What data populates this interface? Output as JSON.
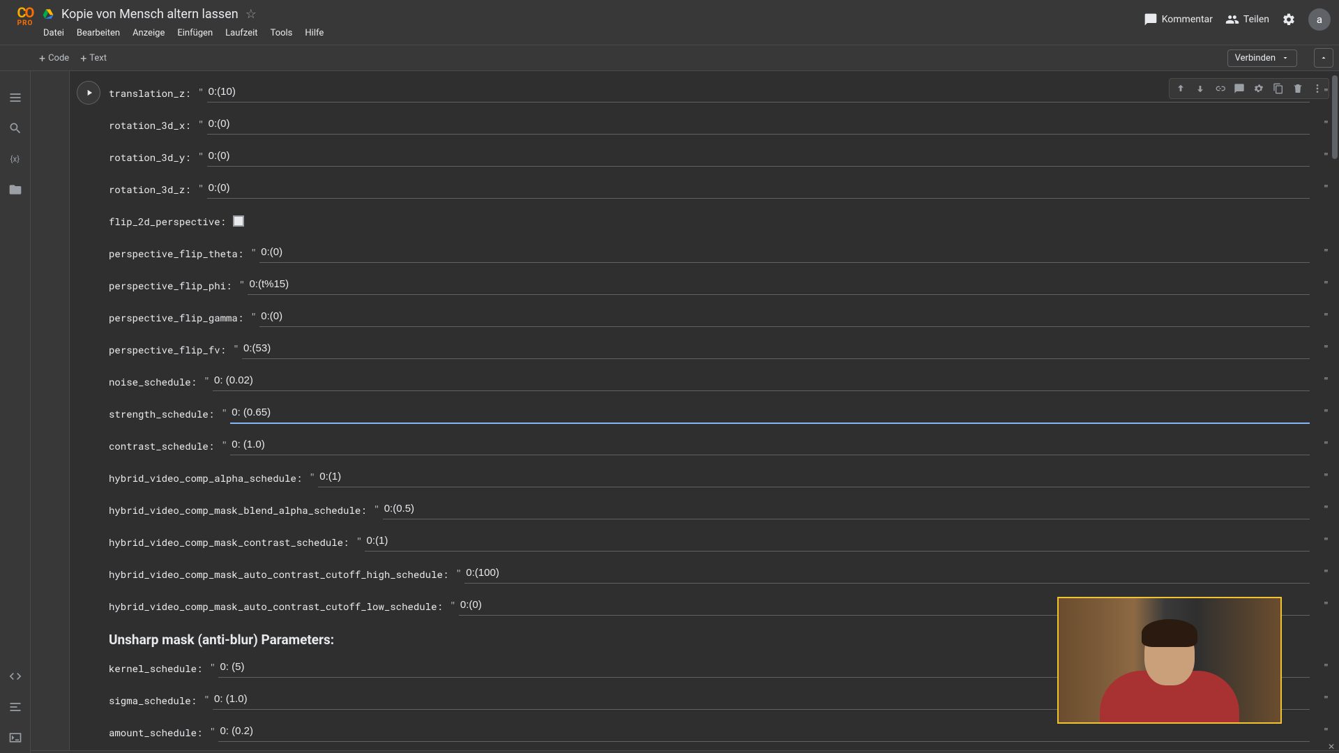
{
  "header": {
    "pro_label": "PRO",
    "notebook_title": "Kopie von Mensch altern lassen",
    "menu": [
      "Datei",
      "Bearbeiten",
      "Anzeige",
      "Einfügen",
      "Laufzeit",
      "Tools",
      "Hilfe"
    ],
    "comment_label": "Kommentar",
    "share_label": "Teilen",
    "avatar_initial": "a"
  },
  "toolbar": {
    "code_label": "Code",
    "text_label": "Text",
    "connect_label": "Verbinden"
  },
  "section_heading": "Unsharp mask (anti-blur) Parameters:",
  "fields": [
    {
      "key": "translation_z",
      "label": "translation_z:",
      "value": "0:(10)"
    },
    {
      "key": "rotation_3d_x",
      "label": "rotation_3d_x:",
      "value": "0:(0)"
    },
    {
      "key": "rotation_3d_y",
      "label": "rotation_3d_y:",
      "value": "0:(0)"
    },
    {
      "key": "rotation_3d_z",
      "label": "rotation_3d_z:",
      "value": "0:(0)"
    },
    {
      "key": "flip_2d_perspective",
      "label": "flip_2d_perspective:",
      "type": "checkbox"
    },
    {
      "key": "perspective_flip_theta",
      "label": "perspective_flip_theta:",
      "value": "0:(0)"
    },
    {
      "key": "perspective_flip_phi",
      "label": "perspective_flip_phi:",
      "value": "0:(t%15)"
    },
    {
      "key": "perspective_flip_gamma",
      "label": "perspective_flip_gamma:",
      "value": "0:(0)"
    },
    {
      "key": "perspective_flip_fv",
      "label": "perspective_flip_fv:",
      "value": "0:(53)"
    },
    {
      "key": "noise_schedule",
      "label": "noise_schedule:",
      "value": "0: (0.02)"
    },
    {
      "key": "strength_schedule",
      "label": "strength_schedule:",
      "value": "0: (0.65)",
      "focused": true
    },
    {
      "key": "contrast_schedule",
      "label": "contrast_schedule:",
      "value": "0: (1.0)"
    },
    {
      "key": "hybrid_video_comp_alpha_schedule",
      "label": "hybrid_video_comp_alpha_schedule:",
      "value": "0:(1)"
    },
    {
      "key": "hybrid_video_comp_mask_blend_alpha_schedule",
      "label": "hybrid_video_comp_mask_blend_alpha_schedule:",
      "value": "0:(0.5)"
    },
    {
      "key": "hybrid_video_comp_mask_contrast_schedule",
      "label": "hybrid_video_comp_mask_contrast_schedule:",
      "value": "0:(1)"
    },
    {
      "key": "hybrid_video_comp_mask_auto_contrast_cutoff_high_schedule",
      "label": "hybrid_video_comp_mask_auto_contrast_cutoff_high_schedule:",
      "value": "0:(100)"
    },
    {
      "key": "hybrid_video_comp_mask_auto_contrast_cutoff_low_schedule",
      "label": "hybrid_video_comp_mask_auto_contrast_cutoff_low_schedule:",
      "value": "0:(0)"
    },
    {
      "key": "kernel_schedule",
      "label": "kernel_schedule:",
      "value": "0: (5)",
      "section": true
    },
    {
      "key": "sigma_schedule",
      "label": "sigma_schedule:",
      "value": "0: (1.0)"
    },
    {
      "key": "amount_schedule",
      "label": "amount_schedule:",
      "value": "0: (0.2)"
    }
  ],
  "colors": {
    "bg": "#383838",
    "panel": "#2f2f2f",
    "border": "#4a4a4a",
    "text": "#e8eaed",
    "muted": "#9aa0a6",
    "accent": "#8ab4f8",
    "pip_border": "#f1c232",
    "pip_shirt": "#a83232"
  }
}
